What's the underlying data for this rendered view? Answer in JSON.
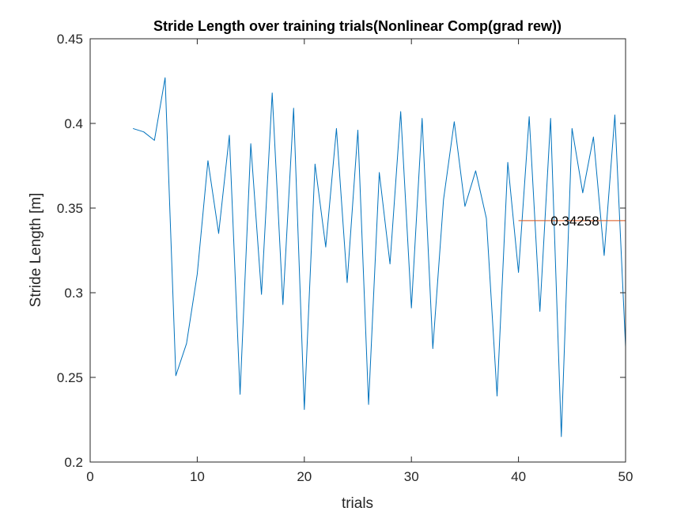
{
  "chart_data": {
    "type": "line",
    "title": "Stride Length over training trials(Nonlinear Comp(grad rew))",
    "xlabel": "trials",
    "ylabel": "Stride Length [m]",
    "xlim": [
      0,
      50
    ],
    "ylim": [
      0.2,
      0.45
    ],
    "xticks": [
      0,
      10,
      20,
      30,
      40,
      50
    ],
    "xtick_labels": [
      "0",
      "10",
      "20",
      "30",
      "40",
      "50"
    ],
    "yticks": [
      0.2,
      0.25,
      0.3,
      0.35,
      0.4,
      0.45
    ],
    "ytick_labels": [
      "0.2",
      "0.25",
      "0.3",
      "0.35",
      "0.4",
      "0.45"
    ],
    "grid": false,
    "box": true,
    "series": [
      {
        "color": "#0072BD",
        "x": [
          4,
          5,
          6,
          7,
          8,
          9,
          10,
          11,
          12,
          13,
          14,
          15,
          16,
          17,
          18,
          19,
          20,
          21,
          22,
          23,
          24,
          25,
          26,
          27,
          28,
          29,
          30,
          31,
          32,
          33,
          34,
          35,
          36,
          37,
          38,
          39,
          40,
          41,
          42,
          43,
          44,
          45,
          46,
          47,
          48,
          49,
          50
        ],
        "y": [
          0.397,
          0.395,
          0.39,
          0.427,
          0.251,
          0.27,
          0.311,
          0.378,
          0.335,
          0.393,
          0.24,
          0.388,
          0.299,
          0.418,
          0.293,
          0.409,
          0.231,
          0.376,
          0.327,
          0.397,
          0.306,
          0.396,
          0.234,
          0.371,
          0.317,
          0.407,
          0.291,
          0.403,
          0.267,
          0.355,
          0.401,
          0.351,
          0.372,
          0.344,
          0.239,
          0.377,
          0.312,
          0.404,
          0.289,
          0.403,
          0.215,
          0.397,
          0.359,
          0.392,
          0.322,
          0.405,
          0.268
        ]
      },
      {
        "color": "#D95319",
        "x": [
          40,
          50
        ],
        "y": [
          0.34258,
          0.34258
        ]
      }
    ],
    "annotations": [
      {
        "text": "0.34258",
        "x": 43,
        "y": 0.34258
      }
    ]
  }
}
